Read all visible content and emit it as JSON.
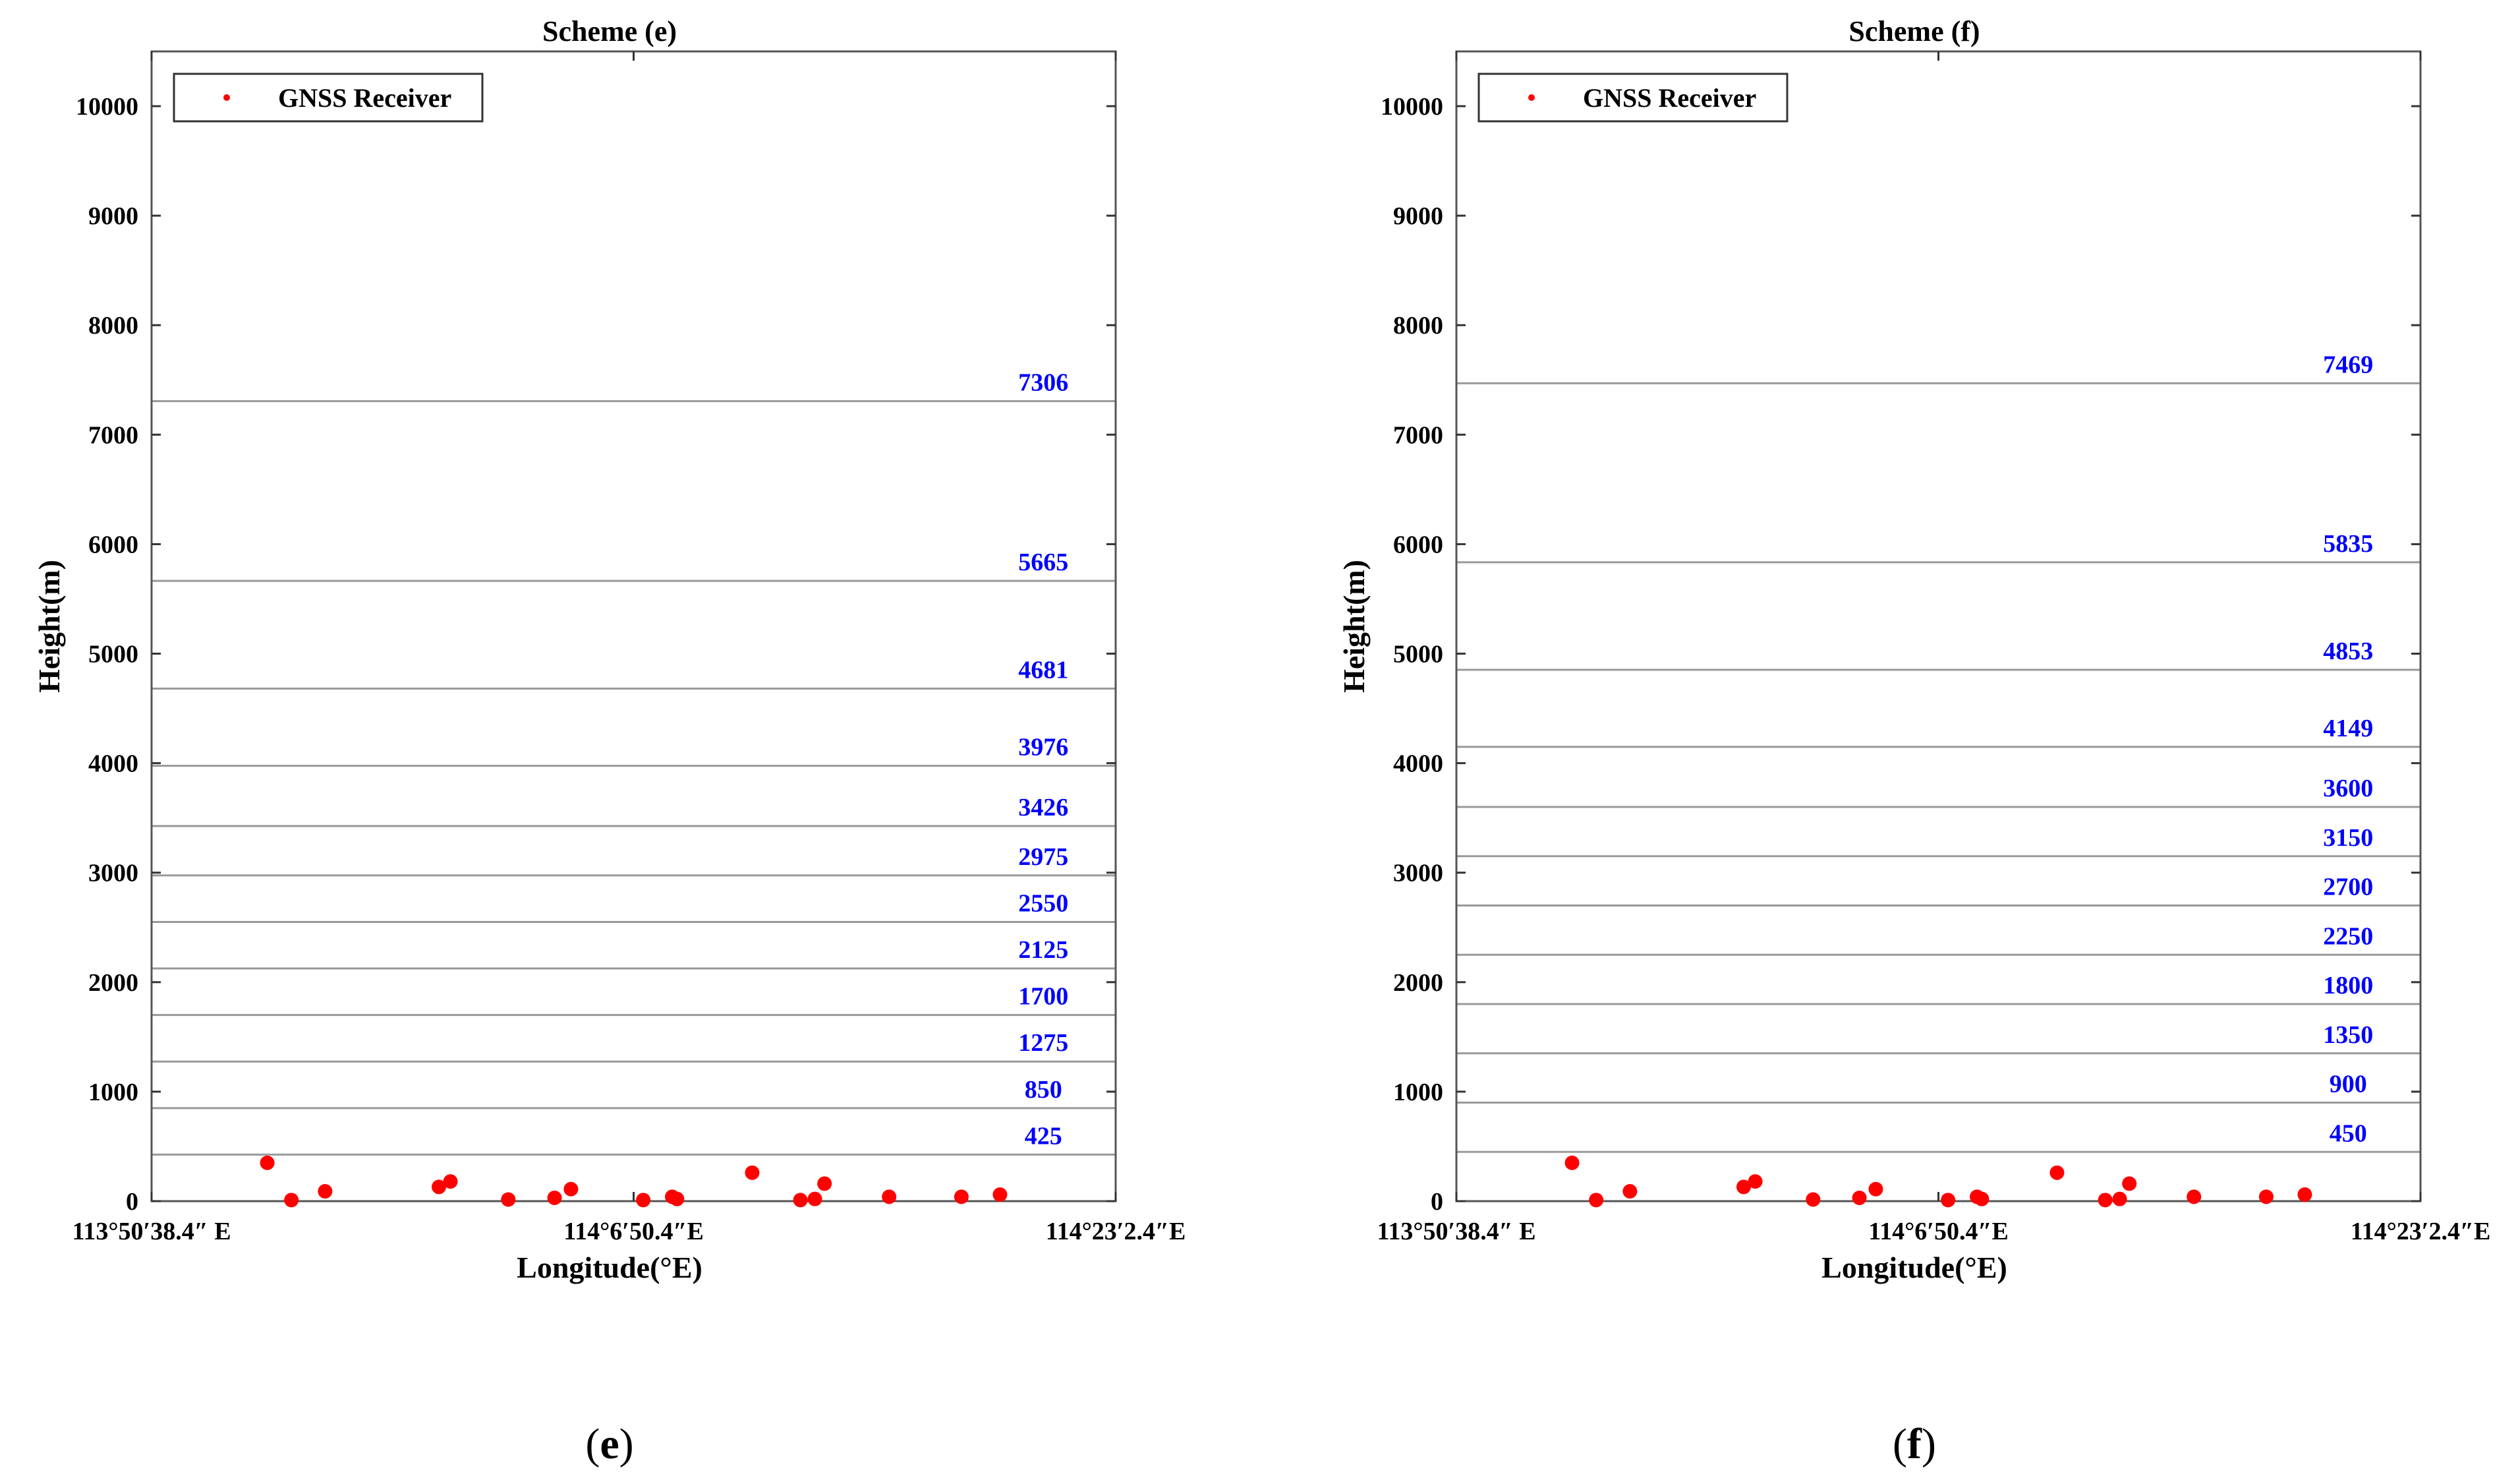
{
  "chart_data": [
    {
      "type": "scatter",
      "title": "Scheme (e)",
      "panel_label": "e",
      "xlabel": "Longitude(°E)",
      "ylabel": "Height(m)",
      "xlim": [
        "113°50′38.4″ E",
        "114°23′2.4″E"
      ],
      "xticks": [
        "113°50′38.4″ E",
        "114°6′50.4″E",
        "114°23′2.4″E"
      ],
      "ylim": [
        0,
        10500
      ],
      "yticks": [
        0,
        1000,
        2000,
        3000,
        4000,
        5000,
        6000,
        7000,
        8000,
        9000,
        10000
      ],
      "legend": {
        "label": "GNSS Receiver",
        "position": "top-left"
      },
      "layer_boundaries": [
        425,
        850,
        1275,
        1700,
        2125,
        2550,
        2975,
        3426,
        3976,
        4681,
        5665,
        7306
      ],
      "series": [
        {
          "name": "GNSS Receiver",
          "x": [
            0.12,
            0.145,
            0.18,
            0.298,
            0.31,
            0.37,
            0.418,
            0.435,
            0.51,
            0.54,
            0.545,
            0.623,
            0.673,
            0.688,
            0.698,
            0.765,
            0.84,
            0.88
          ],
          "y": [
            350,
            10,
            90,
            130,
            180,
            15,
            30,
            110,
            10,
            40,
            20,
            260,
            10,
            20,
            160,
            40,
            40,
            60
          ]
        }
      ]
    },
    {
      "type": "scatter",
      "title": "Scheme (f)",
      "panel_label": "f",
      "xlabel": "Longitude(°E)",
      "ylabel": "Height(m)",
      "xlim": [
        "113°50′38.4″ E",
        "114°23′2.4″E"
      ],
      "xticks": [
        "113°50′38.4″ E",
        "114°6′50.4″E",
        "114°23′2.4″E"
      ],
      "ylim": [
        0,
        10500
      ],
      "yticks": [
        0,
        1000,
        2000,
        3000,
        4000,
        5000,
        6000,
        7000,
        8000,
        9000,
        10000
      ],
      "legend": {
        "label": "GNSS Receiver",
        "position": "top-left"
      },
      "layer_boundaries": [
        450,
        900,
        1350,
        1800,
        2250,
        2700,
        3150,
        3600,
        4149,
        4853,
        5835,
        7469
      ],
      "series": [
        {
          "name": "GNSS Receiver",
          "x": [
            0.12,
            0.145,
            0.18,
            0.298,
            0.31,
            0.37,
            0.418,
            0.435,
            0.51,
            0.54,
            0.545,
            0.623,
            0.673,
            0.688,
            0.698,
            0.765,
            0.84,
            0.88
          ],
          "y": [
            350,
            10,
            90,
            130,
            180,
            15,
            30,
            110,
            10,
            40,
            20,
            260,
            10,
            20,
            160,
            40,
            40,
            60
          ]
        }
      ]
    }
  ],
  "colors": {
    "points": "#ff0000",
    "layer_labels": "#0000ff",
    "layer_lines": "#999999",
    "axes": "#555555"
  }
}
